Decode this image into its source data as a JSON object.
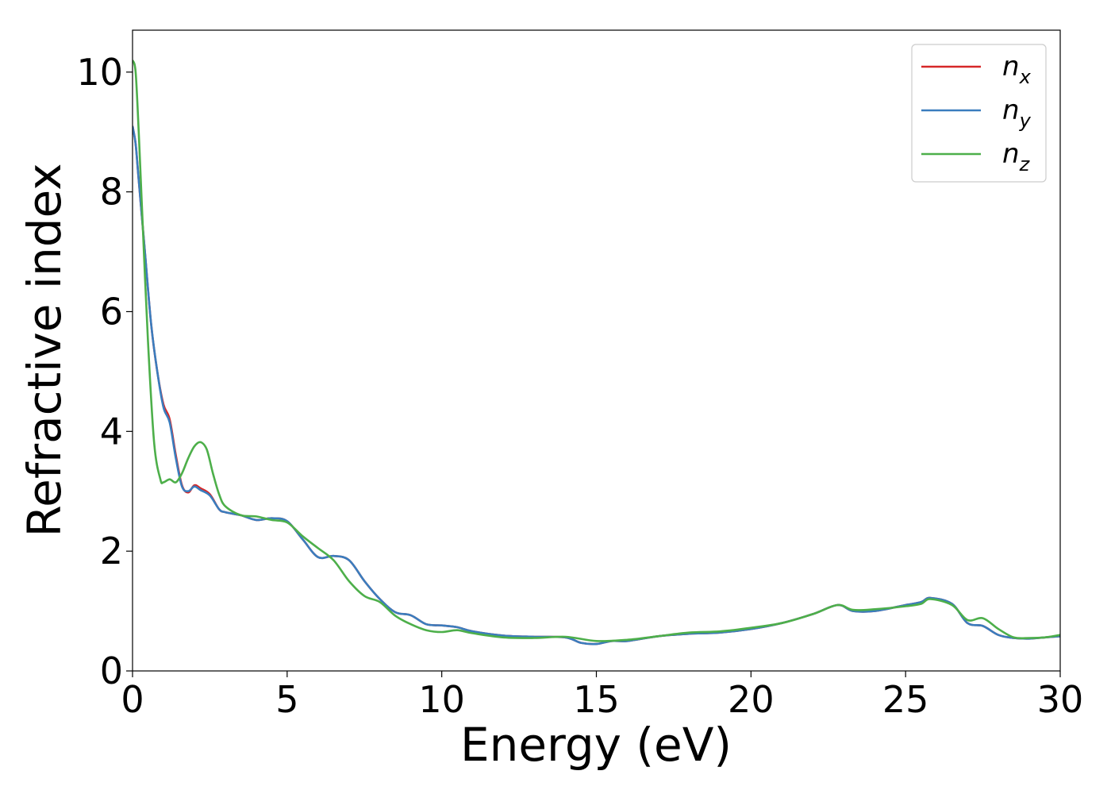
{
  "chart_data": {
    "type": "line",
    "xlabel": "Energy (eV)",
    "ylabel": "Refractive index",
    "xlim": [
      0,
      30
    ],
    "ylim": [
      0,
      10.7
    ],
    "xticks": [
      "0",
      "5",
      "10",
      "15",
      "20",
      "25",
      "30"
    ],
    "yticks": [
      "0",
      "2",
      "4",
      "6",
      "8",
      "10"
    ],
    "grid": false,
    "legend_position": "top-right",
    "series": [
      {
        "name": "n_x",
        "legend_base": "n",
        "legend_sub": "x",
        "color": "#d62728",
        "x": [
          0,
          0.1,
          0.2,
          0.4,
          0.6,
          0.8,
          1.0,
          1.2,
          1.4,
          1.6,
          1.8,
          2.0,
          2.2,
          2.5,
          2.8,
          3.0,
          3.5,
          4.0,
          4.5,
          5.0,
          5.5,
          6.0,
          6.5,
          7.0,
          7.5,
          8.0,
          8.5,
          9.0,
          9.5,
          10.0,
          10.5,
          11.0,
          12.0,
          13.0,
          14.0,
          14.5,
          15.0,
          15.5,
          16.0,
          17.0,
          18.0,
          19.0,
          20.0,
          21.0,
          22.0,
          22.8,
          23.3,
          24.0,
          25.0,
          25.5,
          25.8,
          26.5,
          27.0,
          27.5,
          28.0,
          28.5,
          29.0,
          29.5,
          30.0
        ],
        "y": [
          9.1,
          8.8,
          8.2,
          7.0,
          5.8,
          5.0,
          4.45,
          4.2,
          3.6,
          3.1,
          2.98,
          3.1,
          3.05,
          2.95,
          2.7,
          2.65,
          2.6,
          2.52,
          2.55,
          2.5,
          2.2,
          1.9,
          1.92,
          1.85,
          1.5,
          1.2,
          0.98,
          0.93,
          0.78,
          0.76,
          0.73,
          0.66,
          0.59,
          0.57,
          0.56,
          0.47,
          0.45,
          0.5,
          0.5,
          0.58,
          0.62,
          0.64,
          0.7,
          0.8,
          0.95,
          1.1,
          1.0,
          1.0,
          1.1,
          1.15,
          1.22,
          1.12,
          0.8,
          0.75,
          0.6,
          0.55,
          0.54,
          0.56,
          0.58
        ]
      },
      {
        "name": "n_y",
        "legend_base": "n",
        "legend_sub": "y",
        "color": "#3a7dbe",
        "x": [
          0,
          0.1,
          0.2,
          0.4,
          0.6,
          0.8,
          1.0,
          1.2,
          1.4,
          1.6,
          1.8,
          2.0,
          2.2,
          2.5,
          2.8,
          3.0,
          3.5,
          4.0,
          4.5,
          5.0,
          5.5,
          6.0,
          6.5,
          7.0,
          7.5,
          8.0,
          8.5,
          9.0,
          9.5,
          10.0,
          10.5,
          11.0,
          12.0,
          13.0,
          14.0,
          14.5,
          15.0,
          15.5,
          16.0,
          17.0,
          18.0,
          19.0,
          20.0,
          21.0,
          22.0,
          22.8,
          23.3,
          24.0,
          25.0,
          25.5,
          25.8,
          26.5,
          27.0,
          27.5,
          28.0,
          28.5,
          29.0,
          29.5,
          30.0
        ],
        "y": [
          9.1,
          8.8,
          8.2,
          7.0,
          5.8,
          5.0,
          4.4,
          4.15,
          3.55,
          3.08,
          3.0,
          3.08,
          3.02,
          2.93,
          2.7,
          2.65,
          2.6,
          2.52,
          2.55,
          2.5,
          2.2,
          1.9,
          1.92,
          1.85,
          1.5,
          1.2,
          0.98,
          0.93,
          0.78,
          0.76,
          0.73,
          0.66,
          0.59,
          0.57,
          0.56,
          0.47,
          0.45,
          0.5,
          0.5,
          0.58,
          0.62,
          0.64,
          0.7,
          0.8,
          0.95,
          1.1,
          1.0,
          1.0,
          1.1,
          1.15,
          1.22,
          1.12,
          0.8,
          0.75,
          0.6,
          0.55,
          0.54,
          0.56,
          0.58
        ]
      },
      {
        "name": "n_z",
        "legend_base": "n",
        "legend_sub": "z",
        "color": "#4daf4a",
        "x": [
          0,
          0.1,
          0.2,
          0.3,
          0.5,
          0.7,
          0.9,
          1.0,
          1.2,
          1.4,
          1.6,
          1.8,
          2.0,
          2.2,
          2.4,
          2.6,
          2.8,
          3.0,
          3.5,
          4.0,
          4.5,
          5.0,
          5.5,
          6.0,
          6.5,
          7.0,
          7.5,
          8.0,
          8.5,
          9.0,
          9.5,
          10.0,
          10.5,
          11.0,
          12.0,
          13.0,
          14.0,
          15.0,
          16.0,
          17.0,
          18.0,
          19.0,
          20.0,
          21.0,
          22.0,
          22.8,
          23.3,
          24.0,
          25.0,
          25.5,
          25.8,
          26.5,
          27.0,
          27.5,
          28.0,
          28.5,
          29.0,
          29.5,
          30.0
        ],
        "y": [
          10.2,
          10.0,
          9.0,
          7.8,
          5.5,
          3.8,
          3.2,
          3.15,
          3.2,
          3.15,
          3.3,
          3.55,
          3.75,
          3.82,
          3.7,
          3.3,
          2.95,
          2.75,
          2.6,
          2.58,
          2.52,
          2.48,
          2.25,
          2.05,
          1.85,
          1.5,
          1.25,
          1.15,
          0.92,
          0.78,
          0.68,
          0.65,
          0.68,
          0.63,
          0.56,
          0.55,
          0.57,
          0.5,
          0.52,
          0.58,
          0.64,
          0.66,
          0.72,
          0.8,
          0.95,
          1.1,
          1.02,
          1.03,
          1.08,
          1.12,
          1.2,
          1.1,
          0.85,
          0.88,
          0.7,
          0.56,
          0.55,
          0.56,
          0.6
        ]
      }
    ]
  }
}
